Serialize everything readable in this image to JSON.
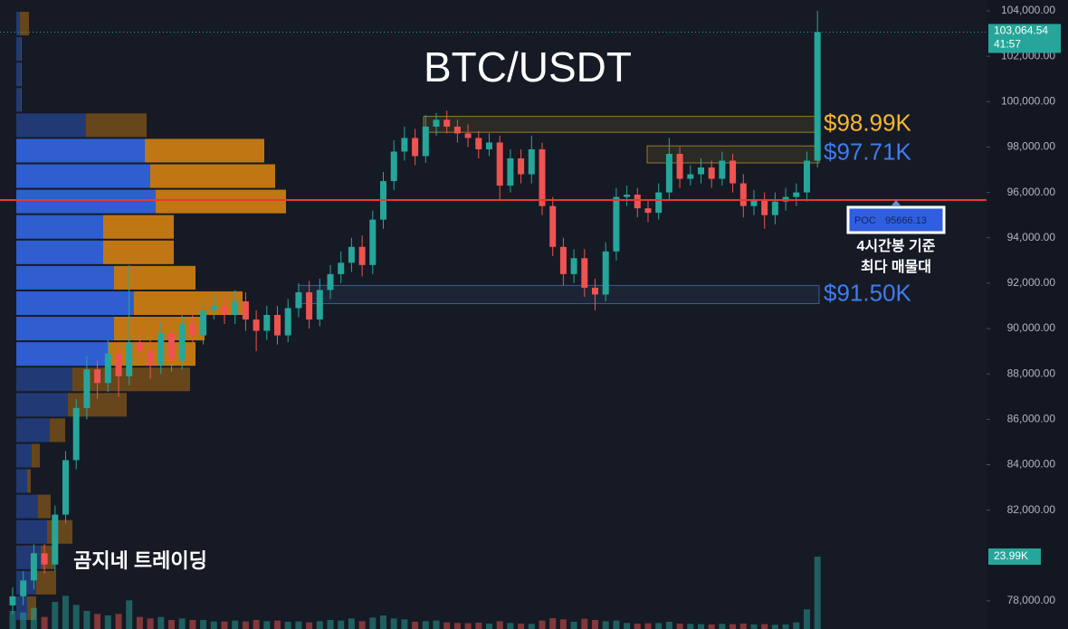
{
  "chart_data": {
    "type": "candlestick",
    "title": "BTC/USDT",
    "watermark": "곰지네 트레이딩",
    "ylim": [
      76760,
      104480
    ],
    "yticks": [
      {
        "value": 104000,
        "label": "104,000.00"
      },
      {
        "value": 102000,
        "label": "102,000.00"
      },
      {
        "value": 100000,
        "label": "100,000.00"
      },
      {
        "value": 98000,
        "label": "98,000.00"
      },
      {
        "value": 96000,
        "label": "96,000.00"
      },
      {
        "value": 94000,
        "label": "94,000.00"
      },
      {
        "value": 92000,
        "label": "92,000.00"
      },
      {
        "value": 90000,
        "label": "90,000.00"
      },
      {
        "value": 88000,
        "label": "88,000.00"
      },
      {
        "value": 86000,
        "label": "86,000.00"
      },
      {
        "value": 84000,
        "label": "84,000.00"
      },
      {
        "value": 82000,
        "label": "82,000.00"
      },
      {
        "value": 78000,
        "label": "78,000.00"
      }
    ],
    "grid": false,
    "up_color": "#26a69a",
    "down_color": "#ef5350",
    "open": [
      77800,
      78200,
      78900,
      80100,
      79600,
      81800,
      84200,
      86500,
      88200,
      87600,
      88900,
      87900,
      89400,
      89000,
      88400,
      89800,
      88600,
      90200,
      89700,
      90800,
      91000,
      90600,
      91200,
      90400,
      89900,
      90600,
      89700,
      90900,
      91600,
      90400,
      91700,
      92400,
      92900,
      93600,
      92800,
      94800,
      96500,
      97800,
      98400,
      97600,
      98900,
      99200,
      98900,
      98600,
      98400,
      97900,
      98200,
      96300,
      97500,
      96800,
      97900,
      95400,
      93600,
      92400,
      93100,
      91800,
      91500,
      93400,
      95800,
      95900,
      95300,
      95100,
      96000,
      97700,
      96600,
      96800,
      97100,
      96600,
      97400,
      96400,
      95400,
      95700,
      95000,
      95600,
      95800,
      96000,
      97400
    ],
    "high": [
      78600,
      79300,
      80500,
      80500,
      82200,
      84600,
      86900,
      88800,
      88600,
      89500,
      89300,
      92800,
      89900,
      89500,
      90300,
      90200,
      90600,
      90700,
      91200,
      91500,
      91400,
      91700,
      91600,
      90800,
      91000,
      91000,
      91300,
      92000,
      92100,
      92200,
      92800,
      93400,
      94000,
      94100,
      95200,
      96900,
      98300,
      98900,
      98800,
      99400,
      99500,
      99600,
      99200,
      99000,
      98700,
      98600,
      98500,
      97900,
      97900,
      98500,
      98200,
      95800,
      94000,
      93500,
      93500,
      92200,
      93800,
      96200,
      96300,
      96200,
      95700,
      96400,
      98400,
      98000,
      97200,
      97500,
      97400,
      97800,
      97700,
      96800,
      96100,
      96000,
      96000,
      96200,
      96400,
      97800,
      104000
    ],
    "low": [
      77400,
      77800,
      78500,
      79200,
      79300,
      81400,
      83800,
      86000,
      86900,
      87200,
      87000,
      87500,
      88600,
      87800,
      88000,
      88100,
      88200,
      89300,
      89300,
      90400,
      90200,
      90200,
      89900,
      89000,
      89500,
      89300,
      89400,
      90500,
      90000,
      90100,
      91300,
      92000,
      92500,
      92300,
      92400,
      94400,
      96100,
      97400,
      97200,
      97300,
      98500,
      98600,
      98200,
      98000,
      97500,
      97600,
      95700,
      96000,
      96400,
      96400,
      95000,
      93200,
      91900,
      92000,
      91400,
      90800,
      91200,
      93000,
      95400,
      94900,
      94700,
      94800,
      95700,
      96200,
      96300,
      96400,
      96200,
      96300,
      96000,
      94900,
      95000,
      94400,
      94600,
      95200,
      95400,
      95600,
      97100
    ],
    "close": [
      78200,
      78900,
      80100,
      79600,
      81800,
      84200,
      86500,
      88200,
      87600,
      88900,
      87900,
      89400,
      89000,
      88400,
      89800,
      88600,
      90200,
      89700,
      90800,
      91000,
      90600,
      91200,
      90400,
      89900,
      90600,
      89700,
      90900,
      91600,
      90400,
      91700,
      92400,
      92900,
      93600,
      92800,
      94800,
      96500,
      97800,
      98400,
      97600,
      98900,
      99200,
      98900,
      98600,
      98400,
      97900,
      98200,
      96300,
      97500,
      96800,
      97900,
      95400,
      93600,
      92400,
      93100,
      91800,
      91500,
      93400,
      95800,
      95900,
      95300,
      95100,
      96000,
      97700,
      96600,
      96800,
      97100,
      96600,
      97400,
      96400,
      95400,
      95700,
      95000,
      95600,
      95800,
      96000,
      97400,
      103064.54
    ],
    "price_label": "103,064.54",
    "countdown": "41:57",
    "volume": [
      6000,
      5500,
      7000,
      4000,
      9000,
      11000,
      8000,
      6000,
      5000,
      4500,
      5000,
      9500,
      4000,
      3500,
      4000,
      3000,
      3500,
      3000,
      3000,
      2500,
      2500,
      2800,
      2500,
      3000,
      2600,
      2800,
      2400,
      2500,
      2200,
      2600,
      3000,
      2800,
      3500,
      2600,
      3800,
      4500,
      3500,
      3200,
      2400,
      2600,
      2800,
      2200,
      2000,
      1900,
      2100,
      1800,
      2600,
      2000,
      1800,
      1700,
      2800,
      3600,
      3200,
      2400,
      3400,
      3000,
      2600,
      2800,
      2000,
      1800,
      1900,
      2000,
      2400,
      1800,
      1700,
      1600,
      1500,
      1700,
      1600,
      1800,
      1500,
      1600,
      1400,
      1500,
      2200,
      6500,
      23990
    ],
    "volume_label": "23.99K",
    "volume_profile": {
      "bins": [
        104000,
        102880,
        101760,
        100640,
        99520,
        98400,
        97280,
        96160,
        95040,
        93920,
        92800,
        91680,
        90560,
        89440,
        88320,
        87200,
        86080,
        84960,
        83840,
        82720,
        81600,
        80480,
        79360,
        78240,
        77120
      ],
      "buy": [
        4,
        5,
        5,
        5,
        77,
        142,
        148,
        154,
        96,
        96,
        108,
        130,
        108,
        102,
        62,
        57,
        37,
        17,
        12,
        24,
        34,
        27,
        22,
        12
      ],
      "sell": [
        10,
        1,
        1,
        1,
        67,
        132,
        138,
        144,
        78,
        78,
        90,
        120,
        100,
        96,
        130,
        65,
        17,
        9,
        4,
        14,
        28,
        15,
        22,
        10
      ],
      "buy_color": "#2f62d8",
      "sell_color": "#c97c12"
    },
    "zones": [
      {
        "high": 99350,
        "low": 98650,
        "color": "#c9a227"
      },
      {
        "high": 98050,
        "low": 97300,
        "color": "#c9a227"
      },
      {
        "high": 91900,
        "low": 91100,
        "color": "#4a78b8"
      }
    ],
    "levels": [
      {
        "value": 98990,
        "label": "$98.99K",
        "color": "#f5b82e"
      },
      {
        "value": 97710,
        "label": "$97.71K",
        "color": "#3f7cf0"
      },
      {
        "value": 91500,
        "label": "$91.50K",
        "color": "#3f7cf0"
      }
    ],
    "poc": {
      "label": "POC",
      "value": 95666.13,
      "color": "#e53935"
    },
    "poc_note": [
      "4시간봉 기준",
      "최다 매물대"
    ]
  }
}
